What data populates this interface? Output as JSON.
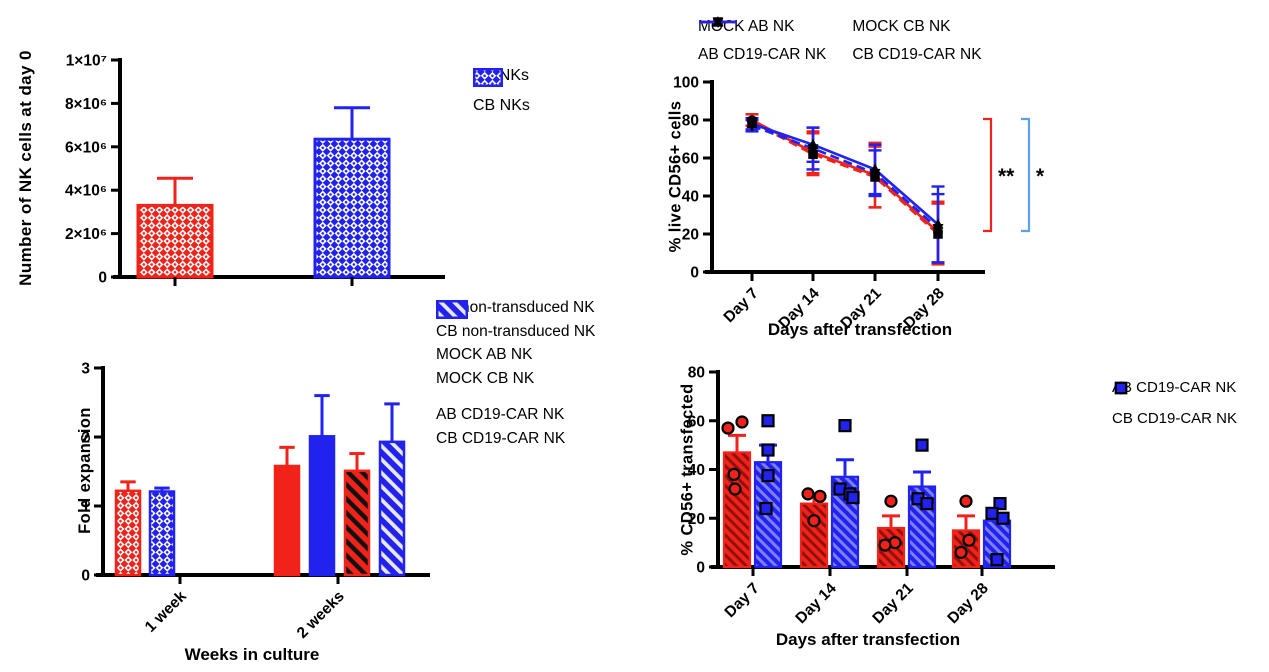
{
  "colors": {
    "red": "#f0231a",
    "blue": "#2122ee",
    "light_blue": "#5ba0e8",
    "black": "#000000"
  },
  "chart_data": [
    {
      "id": "nk_cells_day0",
      "type": "bar",
      "ylabel": "Number of NK cells at day 0",
      "xlabel": "",
      "ylim": [
        0,
        10000000
      ],
      "yticks": [
        {
          "value": 0,
          "label": "0"
        },
        {
          "value": 2000000,
          "label": "2×10⁶"
        },
        {
          "value": 4000000,
          "label": "4×10⁶"
        },
        {
          "value": 6000000,
          "label": "6×10⁶"
        },
        {
          "value": 8000000,
          "label": "8×10⁶"
        },
        {
          "value": 10000000,
          "label": "1×10⁷"
        }
      ],
      "bars": [
        {
          "name": "AB NKs",
          "value": 3300000,
          "error_up": 1250000,
          "fill": "checker-red"
        },
        {
          "name": "CB NKs",
          "value": 6350000,
          "error_up": 1450000,
          "fill": "checker-blue"
        }
      ],
      "legend_position": "right"
    },
    {
      "id": "live_cd56",
      "type": "line",
      "ylabel": "% live CD56+ cells",
      "xlabel": "Days after transfection",
      "ylim": [
        0,
        100
      ],
      "yticks": [
        0,
        20,
        40,
        60,
        80,
        100
      ],
      "categories": [
        "Day 7",
        "Day 14",
        "Day 21",
        "Day 28"
      ],
      "series": [
        {
          "name": "MOCK AB NK",
          "color": "red",
          "dash": false,
          "marker": "circle",
          "values": [
            80,
            63,
            51,
            21
          ],
          "errors": [
            3,
            11,
            17,
            16
          ]
        },
        {
          "name": "AB CD19-CAR NK",
          "color": "red",
          "dash": true,
          "marker": "square",
          "values": [
            79,
            62,
            50,
            20
          ],
          "errors": [
            4,
            11,
            16,
            16
          ]
        },
        {
          "name": "MOCK CB NK",
          "color": "blue",
          "dash": false,
          "marker": "triangle-up",
          "values": [
            78,
            67,
            54,
            25
          ],
          "errors": [
            3,
            9,
            13,
            20
          ]
        },
        {
          "name": "CB CD19-CAR NK",
          "color": "blue",
          "dash": true,
          "marker": "triangle-down",
          "values": [
            77,
            65,
            52,
            23
          ],
          "errors": [
            3,
            11,
            12,
            18
          ]
        }
      ],
      "annotations": [
        {
          "label": "**",
          "color": "red"
        },
        {
          "label": "*",
          "color": "light_blue"
        }
      ],
      "legend_position": "top"
    },
    {
      "id": "fold_expansion",
      "type": "bar",
      "ylabel": "Fold expansion",
      "xlabel": "Weeks in culture",
      "ylim": [
        0,
        3
      ],
      "yticks": [
        0,
        1,
        2,
        3
      ],
      "legend": [
        {
          "label": "AB non-transduced NK",
          "fill": "checker-red"
        },
        {
          "label": "CB non-transduced NK",
          "fill": "checker-blue"
        },
        {
          "label": "MOCK AB NK",
          "fill": "solid-red"
        },
        {
          "label": "MOCK CB NK",
          "fill": "solid-blue"
        },
        {
          "label": "AB CD19-CAR NK",
          "fill": "hatch-red-black"
        },
        {
          "label": "CB CD19-CAR NK",
          "fill": "hatch-blue-white"
        }
      ],
      "groups": [
        {
          "label": "1 week",
          "series_idx": [
            0,
            1
          ],
          "values": [
            1.22,
            1.21
          ],
          "errors_up": [
            0.13,
            0.05
          ]
        },
        {
          "label": "2 weeks",
          "series_idx": [
            2,
            3,
            4,
            5
          ],
          "values": [
            1.58,
            2.01,
            1.51,
            1.93
          ],
          "errors_up": [
            0.27,
            0.59,
            0.25,
            0.55
          ]
        }
      ],
      "legend_position": "right"
    },
    {
      "id": "cd56_transfected",
      "type": "bar-scatter",
      "ylabel": "% CD56+ transfected",
      "xlabel": "Days after transfection",
      "ylim": [
        0,
        80
      ],
      "yticks": [
        0,
        20,
        40,
        60,
        80
      ],
      "categories": [
        "Day 7",
        "Day 14",
        "Day 21",
        "Day 28"
      ],
      "series": [
        {
          "name": "AB CD19-CAR NK",
          "color": "red",
          "marker": "circle",
          "fill": "hatch-red-dark",
          "values": [
            47,
            26,
            16,
            15
          ],
          "errors_up": [
            7,
            3,
            5,
            6
          ],
          "points": [
            [
              [
                57,
                -9
              ],
              [
                59.5,
                5
              ],
              [
                38,
                -3
              ],
              [
                32,
                -2
              ]
            ],
            [
              [
                30,
                -6
              ],
              [
                29,
                6
              ],
              [
                19,
                0
              ]
            ],
            [
              [
                27,
                0
              ],
              [
                10,
                4
              ],
              [
                9,
                -6
              ]
            ],
            [
              [
                27,
                0
              ],
              [
                11,
                3
              ],
              [
                6,
                -5
              ]
            ]
          ]
        },
        {
          "name": "CB CD19-CAR NK",
          "color": "blue",
          "marker": "square",
          "fill": "hatch-blue-light",
          "values": [
            43,
            37,
            33,
            19
          ],
          "errors_up": [
            7,
            7,
            6,
            2
          ],
          "points": [
            [
              [
                60,
                0
              ],
              [
                48,
                0
              ],
              [
                37.5,
                0
              ],
              [
                24,
                -2
              ]
            ],
            [
              [
                58,
                0
              ],
              [
                32,
                -5
              ],
              [
                30,
                5
              ],
              [
                28.5,
                8
              ]
            ],
            [
              [
                50,
                0
              ],
              [
                28,
                -4
              ],
              [
                26,
                5
              ]
            ],
            [
              [
                26,
                3
              ],
              [
                22,
                -5
              ],
              [
                20,
                6
              ],
              [
                3,
                0
              ]
            ]
          ]
        }
      ],
      "legend_position": "right"
    }
  ]
}
